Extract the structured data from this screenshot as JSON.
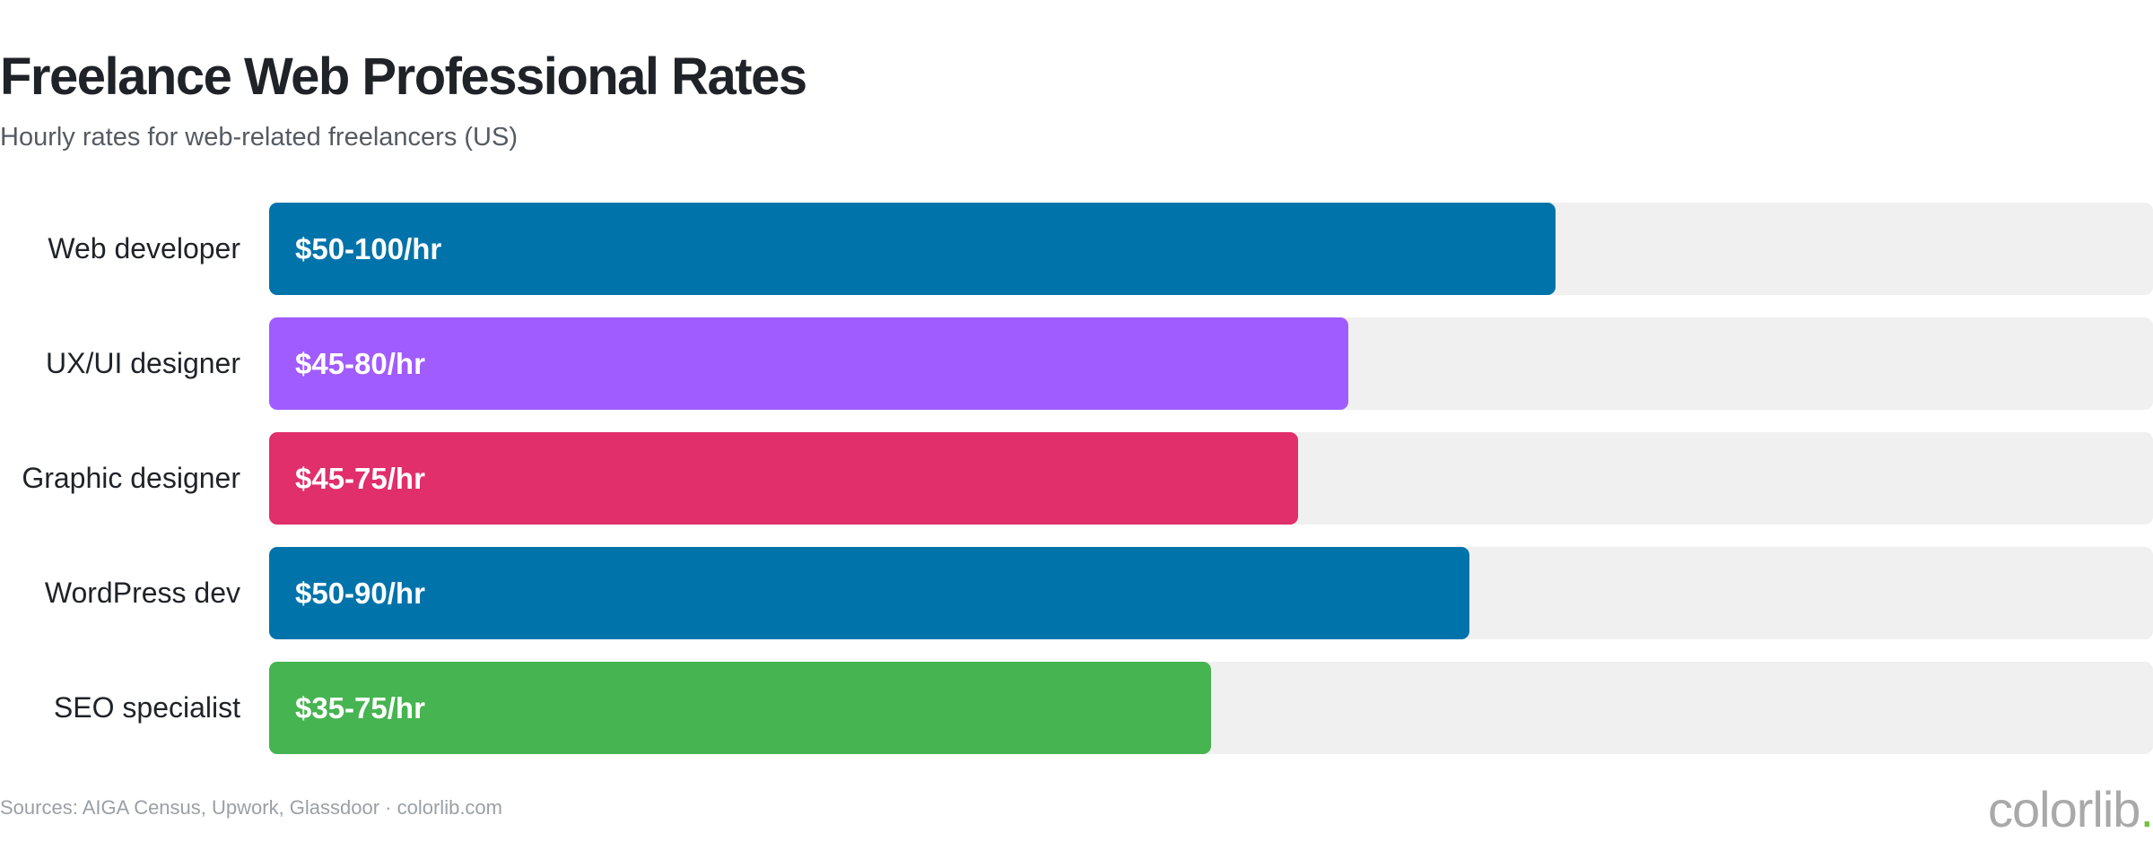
{
  "header": {
    "title": "Freelance Web Professional Rates",
    "subtitle": "Hourly rates for web-related freelancers (US)"
  },
  "footer": {
    "source": "Sources: AIGA Census, Upwork, Glassdoor · colorlib.com",
    "brand": "colorlib",
    "brand_dot": "."
  },
  "colors": {
    "track": "#f0f0f0",
    "value_text": "#ffffff"
  },
  "chart_data": {
    "type": "bar",
    "orientation": "horizontal",
    "title": "Freelance Web Professional Rates",
    "subtitle": "Hourly rates for web-related freelancers (US)",
    "grid": false,
    "legend": "none",
    "xlim": [
      0,
      100
    ],
    "fill_fraction_of_track": [
      0.683,
      0.573,
      0.546,
      0.637,
      0.5
    ],
    "bars": [
      {
        "category": "Web developer",
        "label": "$50-100/hr",
        "low": 50,
        "high": 100,
        "color": "#0073aa"
      },
      {
        "category": "UX/UI designer",
        "label": "$45-80/hr",
        "low": 45,
        "high": 80,
        "color": "#a05cff"
      },
      {
        "category": "Graphic designer",
        "label": "$45-75/hr",
        "low": 45,
        "high": 75,
        "color": "#e02f6b"
      },
      {
        "category": "WordPress dev",
        "label": "$50-90/hr",
        "low": 50,
        "high": 90,
        "color": "#0073aa"
      },
      {
        "category": "SEO specialist",
        "label": "$35-75/hr",
        "low": 35,
        "high": 75,
        "color": "#46b450"
      }
    ]
  }
}
